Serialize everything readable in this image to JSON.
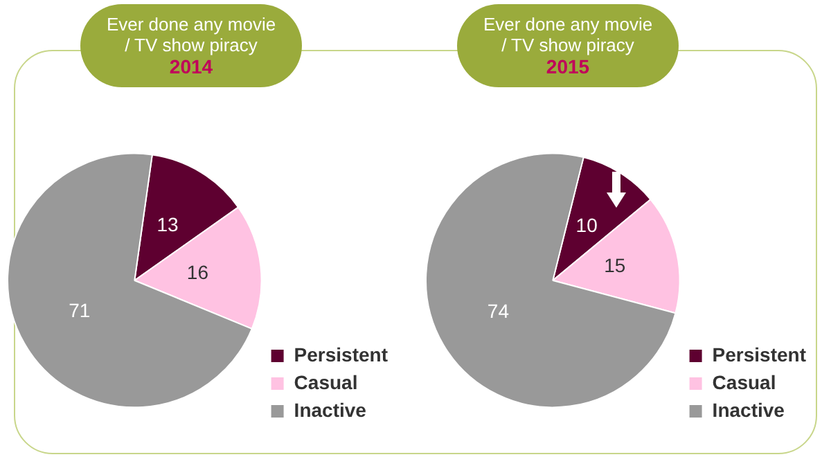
{
  "chart_data": [
    {
      "type": "pie",
      "title": "Ever done any movie / TV show piracy",
      "subtitle": "2014",
      "categories": [
        "Persistent",
        "Casual",
        "Inactive"
      ],
      "values": [
        13,
        16,
        71
      ],
      "colors": [
        "#5e0030",
        "#ffc2e2",
        "#999999"
      ],
      "data_labels": true,
      "legend": "bottom right"
    },
    {
      "type": "pie",
      "title": "Ever done any movie / TV show piracy",
      "subtitle": "2015",
      "categories": [
        "Persistent",
        "Casual",
        "Inactive"
      ],
      "values": [
        10,
        15,
        74
      ],
      "colors": [
        "#5e0030",
        "#ffc2e2",
        "#999999"
      ],
      "data_labels": true,
      "legend": "bottom right"
    }
  ]
}
